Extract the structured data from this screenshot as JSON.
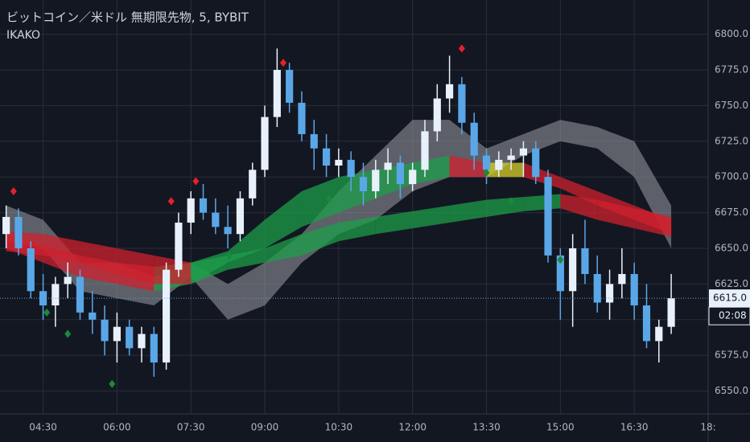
{
  "chart_data": {
    "type": "candlestick",
    "title": "ビットコイン／米ドル 無期限先物, 5, BYBIT",
    "subtitle": "IKAKO",
    "up_color": "#e8f1fb",
    "down_color": "#5aa7e8",
    "open": [
      6660,
      6672,
      6650,
      6620,
      6610,
      6625,
      6630,
      6605,
      6600,
      6585,
      6595,
      6580,
      6590,
      6570,
      6635,
      6668,
      6685,
      6675,
      6665,
      6660,
      6685,
      6705,
      6742,
      6775,
      6752,
      6730,
      6720,
      6708,
      6712,
      6700,
      6690,
      6705,
      6710,
      6695,
      6705,
      6732,
      6755,
      6765,
      6738,
      6715,
      6705,
      6712,
      6715,
      6720,
      6700,
      6645,
      6620,
      6650,
      6632,
      6612,
      6625,
      6632,
      6610,
      6585,
      6595
    ],
    "high": [
      6680,
      6678,
      6655,
      6632,
      6630,
      6640,
      6635,
      6620,
      6610,
      6605,
      6600,
      6595,
      6595,
      6640,
      6675,
      6690,
      6695,
      6685,
      6680,
      6690,
      6710,
      6750,
      6790,
      6780,
      6760,
      6740,
      6730,
      6720,
      6718,
      6710,
      6712,
      6720,
      6715,
      6710,
      6740,
      6765,
      6785,
      6770,
      6745,
      6720,
      6718,
      6720,
      6725,
      6725,
      6705,
      6650,
      6660,
      6670,
      6645,
      6635,
      6650,
      6640,
      6625,
      6600,
      6632
    ],
    "low": [
      6650,
      6645,
      6615,
      6600,
      6595,
      6615,
      6600,
      6590,
      6575,
      6570,
      6575,
      6570,
      6560,
      6565,
      6630,
      6660,
      6670,
      6660,
      6650,
      6655,
      6680,
      6700,
      6735,
      6745,
      6725,
      6705,
      6700,
      6700,
      6690,
      6680,
      6685,
      6695,
      6685,
      6690,
      6700,
      6725,
      6745,
      6730,
      6705,
      6695,
      6700,
      6705,
      6700,
      6695,
      6640,
      6600,
      6595,
      6625,
      6605,
      6600,
      6615,
      6600,
      6580,
      6570,
      6590
    ],
    "close": [
      6672,
      6650,
      6620,
      6610,
      6625,
      6630,
      6605,
      6600,
      6585,
      6595,
      6580,
      6590,
      6570,
      6635,
      6668,
      6685,
      6675,
      6665,
      6660,
      6685,
      6705,
      6742,
      6775,
      6752,
      6730,
      6720,
      6708,
      6712,
      6700,
      6690,
      6705,
      6710,
      6695,
      6705,
      6732,
      6755,
      6765,
      6738,
      6715,
      6705,
      6712,
      6715,
      6720,
      6700,
      6645,
      6620,
      6650,
      6632,
      6612,
      6625,
      6632,
      6610,
      6585,
      6595,
      6615
    ],
    "ribbon_colors": {
      "up": "#1e9e4a",
      "down": "#d0202e",
      "flat": "#d8d02a"
    },
    "ribbons": [
      {
        "x": [
          0,
          3,
          6,
          9,
          12,
          15,
          18,
          21,
          24,
          27,
          30,
          33,
          36,
          39,
          42,
          45,
          48,
          51,
          54
        ],
        "upper": [
          6660,
          6652,
          6645,
          6640,
          6637,
          6640,
          6648,
          6670,
          6690,
          6700,
          6705,
          6710,
          6715,
          6710,
          6710,
          6700,
          6690,
          6680,
          6670
        ],
        "lower": [
          6650,
          6640,
          6630,
          6625,
          6620,
          6625,
          6640,
          6650,
          6665,
          6675,
          6685,
          6695,
          6700,
          6700,
          6700,
          6692,
          6680,
          6670,
          6660
        ]
      },
      {
        "x": [
          0,
          3,
          6,
          9,
          12,
          15,
          18,
          21,
          24,
          27,
          30,
          33,
          36,
          39,
          42,
          45,
          48,
          51,
          54
        ],
        "upper": [
          6662,
          6660,
          6655,
          6650,
          6645,
          6640,
          6645,
          6650,
          6660,
          6668,
          6672,
          6676,
          6680,
          6684,
          6686,
          6688,
          6684,
          6678,
          6672
        ],
        "lower": [
          6648,
          6645,
          6640,
          6632,
          6625,
          6625,
          6635,
          6640,
          6645,
          6655,
          6660,
          6664,
          6668,
          6672,
          6676,
          6678,
          6670,
          6664,
          6658
        ]
      }
    ],
    "cloud": {
      "color": "#9a9ca3",
      "x": [
        0,
        3,
        6,
        9,
        12,
        15,
        18,
        21,
        24,
        27,
        30,
        33,
        36,
        39,
        42,
        45,
        48,
        51,
        54
      ],
      "upper": [
        6680,
        6670,
        6640,
        6640,
        6630,
        6640,
        6625,
        6640,
        6660,
        6690,
        6715,
        6740,
        6740,
        6720,
        6730,
        6740,
        6735,
        6725,
        6680
      ],
      "lower": [
        6655,
        6650,
        6620,
        6615,
        6610,
        6630,
        6600,
        6610,
        6640,
        6660,
        6670,
        6690,
        6700,
        6700,
        6715,
        6725,
        6720,
        6700,
        6650
      ]
    },
    "signals": [
      {
        "color": "#e8202a",
        "x": [
          0.6,
          13.4,
          15.4,
          22.5,
          37
        ],
        "values": [
          6690,
          6683,
          6697,
          6780,
          6790
        ]
      },
      {
        "color": "#1a8a3a",
        "x": [
          3.3,
          5,
          8.6,
          18.1,
          26.2,
          39,
          41,
          45
        ],
        "values": [
          6605,
          6590,
          6555,
          6645,
          6685,
          6703,
          6683,
          6642
        ]
      }
    ],
    "last_price": {
      "value": 6615,
      "label": "6615.0"
    },
    "countdown": "02:08",
    "xlim": [
      -0.5,
      57
    ],
    "ylim": [
      6534,
      6824
    ],
    "xticks": [
      {
        "value": 3,
        "label": "04:30"
      },
      {
        "value": 9,
        "label": "06:00"
      },
      {
        "value": 15,
        "label": "07:30"
      },
      {
        "value": 21,
        "label": "09:00"
      },
      {
        "value": 27,
        "label": "10:30"
      },
      {
        "value": 33,
        "label": "12:00"
      },
      {
        "value": 39,
        "label": "13:30"
      },
      {
        "value": 45,
        "label": "15:00"
      },
      {
        "value": 51,
        "label": "16:30"
      },
      {
        "value": 57,
        "label": "18:"
      }
    ],
    "yticks": [
      {
        "value": 6550,
        "label": "6550.0"
      },
      {
        "value": 6575,
        "label": "6575.0"
      },
      {
        "value": 6600,
        "label": "6600.0"
      },
      {
        "value": 6625,
        "label": "6625.0"
      },
      {
        "value": 6650,
        "label": "6650.0"
      },
      {
        "value": 6675,
        "label": "6675.0"
      },
      {
        "value": 6700,
        "label": "6700.0"
      },
      {
        "value": 6725,
        "label": "6725.0"
      },
      {
        "value": 6750,
        "label": "6750.0"
      },
      {
        "value": 6775,
        "label": "6775.0"
      },
      {
        "value": 6800,
        "label": "6800.0"
      }
    ],
    "grid": true
  }
}
